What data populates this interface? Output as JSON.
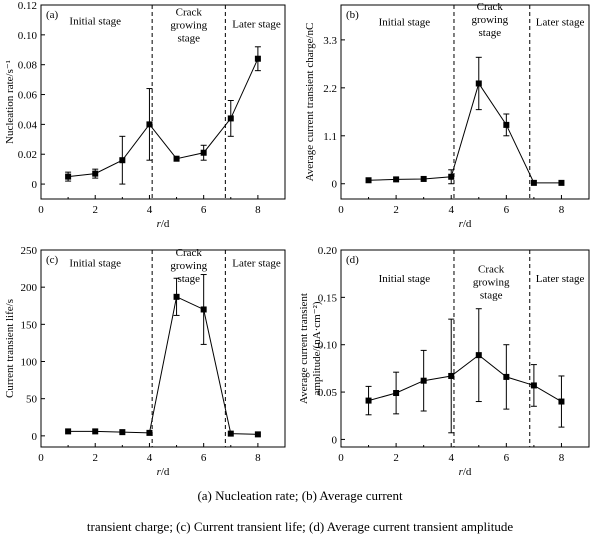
{
  "caption": {
    "line1": "(a)  Nucleation rate;  (b)  Average current",
    "line2": "transient charge; (c) Current transient life; (d) Average current transient amplitude"
  },
  "chart_data": [
    {
      "type": "line",
      "panel": "(a)",
      "xlabel": "r/d",
      "ylabel": "Nucleation rate/s⁻¹",
      "xlim": [
        0,
        9
      ],
      "ylim": [
        -0.01,
        0.12
      ],
      "xticks": [
        0,
        2,
        4,
        6,
        8
      ],
      "yticks": [
        0,
        0.02,
        0.04,
        0.06,
        0.08,
        0.1,
        0.12
      ],
      "ytick_labels": [
        "0",
        "0.02",
        "0.04",
        "0.06",
        "0.08",
        "0.10",
        "0.12"
      ],
      "x": [
        1,
        2,
        3,
        4,
        5,
        6,
        7,
        8
      ],
      "y": [
        0.005,
        0.007,
        0.016,
        0.04,
        0.017,
        0.021,
        0.044,
        0.084
      ],
      "err": [
        0.003,
        0.003,
        0.016,
        0.024,
        0,
        0.005,
        0.012,
        0.008
      ],
      "dividers": [
        4.1,
        6.8
      ],
      "stages": [
        {
          "label": "Initial stage",
          "x": 2.0,
          "y": 0.107
        },
        {
          "label": "Crack\ngrowing\nstage",
          "x": 5.45,
          "y": 0.113
        },
        {
          "label": "Later stage",
          "x": 7.95,
          "y": 0.105
        }
      ]
    },
    {
      "type": "line",
      "panel": "(b)",
      "xlabel": "r/d",
      "ylabel": "Average current transient charge/nC",
      "xlim": [
        0,
        9
      ],
      "ylim": [
        -0.35,
        4.1
      ],
      "xticks": [
        0,
        2,
        4,
        6,
        8
      ],
      "yticks": [
        0,
        1.1,
        2.2,
        3.3
      ],
      "ytick_labels": [
        "0",
        "1.1",
        "2.2",
        "3.3"
      ],
      "x": [
        1,
        2,
        3,
        4,
        5,
        6,
        7,
        8
      ],
      "y": [
        0.08,
        0.1,
        0.11,
        0.16,
        2.3,
        1.35,
        0.02,
        0.02
      ],
      "err": [
        0,
        0,
        0,
        0.16,
        0.6,
        0.25,
        0,
        0
      ],
      "dividers": [
        4.1,
        6.85
      ],
      "stages": [
        {
          "label": "Initial stage",
          "x": 2.3,
          "y": 3.63
        },
        {
          "label": "Crack\ngrowing\nstage",
          "x": 5.4,
          "y": 3.98
        },
        {
          "label": "Later stage",
          "x": 7.95,
          "y": 3.63
        }
      ]
    },
    {
      "type": "line",
      "panel": "(c)",
      "xlabel": "r/d",
      "ylabel": "Current transient life/s",
      "xlim": [
        0,
        9
      ],
      "ylim": [
        -15,
        250
      ],
      "xticks": [
        0,
        2,
        4,
        6,
        8
      ],
      "yticks": [
        0,
        50,
        100,
        150,
        200,
        250
      ],
      "ytick_labels": [
        "0",
        "50",
        "100",
        "150",
        "200",
        "250"
      ],
      "x": [
        1,
        2,
        3,
        4,
        5,
        6,
        7,
        8
      ],
      "y": [
        6,
        6,
        5,
        4,
        187,
        170,
        3,
        2
      ],
      "err": [
        0,
        0,
        0,
        0,
        25,
        47,
        0,
        0
      ],
      "dividers": [
        4.1,
        6.8
      ],
      "stages": [
        {
          "label": "Initial stage",
          "x": 2.0,
          "y": 228
        },
        {
          "label": "Crack\ngrowing\nstage",
          "x": 5.45,
          "y": 242
        },
        {
          "label": "Later stage",
          "x": 7.95,
          "y": 228
        }
      ]
    },
    {
      "type": "line",
      "panel": "(d)",
      "xlabel": "r/d",
      "ylabel": "Average current transient\namplitude/(nA·cm⁻²)",
      "xlim": [
        0,
        9
      ],
      "ylim": [
        -0.008,
        0.2
      ],
      "xticks": [
        0,
        2,
        4,
        6,
        8
      ],
      "yticks": [
        0,
        0.05,
        0.1,
        0.15,
        0.2
      ],
      "ytick_labels": [
        "0",
        "0.05",
        "0.10",
        "0.15",
        "0.20"
      ],
      "x": [
        1,
        2,
        3,
        4,
        5,
        6,
        7,
        8
      ],
      "y": [
        0.041,
        0.049,
        0.062,
        0.067,
        0.089,
        0.066,
        0.057,
        0.04
      ],
      "err": [
        0.015,
        0.022,
        0.032,
        0.06,
        0.049,
        0.034,
        0.022,
        0.027
      ],
      "dividers": [
        4.1,
        6.85
      ],
      "stages": [
        {
          "label": "Initial stage",
          "x": 2.3,
          "y": 0.166
        },
        {
          "label": "Crack\ngrowing\nstage",
          "x": 5.45,
          "y": 0.176
        },
        {
          "label": "Later stage",
          "x": 7.95,
          "y": 0.166
        }
      ]
    }
  ]
}
